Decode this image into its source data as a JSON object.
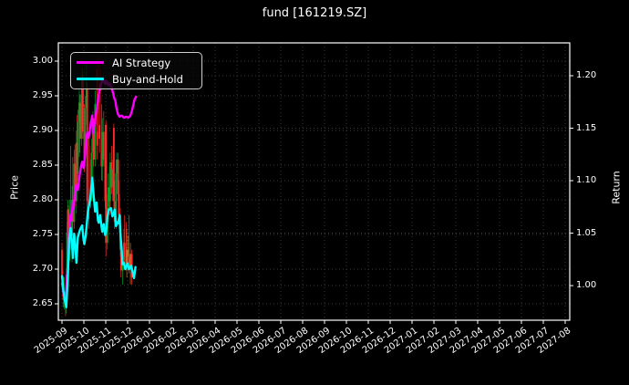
{
  "title": "fund [161219.SZ]",
  "figure": {
    "bg": "#000000",
    "text_color": "#ffffff",
    "grid_color": "#3a3a3a",
    "spine_color": "#ffffff"
  },
  "legend": {
    "items": [
      {
        "label": "AI Strategy",
        "color": "#ff00ff"
      },
      {
        "label": "Buy-and-Hold",
        "color": "#00ffff"
      }
    ]
  },
  "axes": {
    "left": {
      "label": "Price",
      "tick_labels": [
        "3.00",
        "2.95",
        "2.90",
        "2.85",
        "2.80",
        "2.75",
        "2.70",
        "2.65"
      ],
      "tick_values": [
        3.0,
        2.95,
        2.9,
        2.85,
        2.8,
        2.75,
        2.7,
        2.65
      ],
      "range": [
        2.6263,
        3.0263
      ]
    },
    "right": {
      "label": "Return",
      "tick_labels": [
        "1.20",
        "1.15",
        "1.10",
        "1.05",
        "1.00"
      ],
      "tick_values": [
        1.2,
        1.15,
        1.1,
        1.05,
        1.0
      ],
      "range": [
        0.967,
        1.2313
      ]
    },
    "bottom": {
      "tick_labels": [
        "2025-09",
        "2025-10",
        "2025-11",
        "2025-12",
        "2026-01",
        "2026-02",
        "2026-03",
        "2026-04",
        "2026-05",
        "2026-06",
        "2026-07",
        "2026-08",
        "2026-09",
        "2026-10",
        "2026-11",
        "2026-12",
        "2027-01",
        "2027-02",
        "2027-03",
        "2027-04",
        "2027-05",
        "2027-06",
        "2027-07",
        "2027-08"
      ]
    }
  },
  "chart_data": {
    "type": "candlestick+line",
    "title": "fund [161219.SZ]",
    "ylabel_left": "Price",
    "ylabel_right": "Return",
    "grid": true,
    "legend_position": "upper left",
    "x_unit": "days since 2025-09-01",
    "price_axis_range": [
      2.6263,
      3.0263
    ],
    "return_axis_range": [
      0.967,
      1.2313
    ],
    "x_months": [
      "2025-09",
      "2025-10",
      "2025-11",
      "2025-12",
      "2026-01",
      "2026-02",
      "2026-03",
      "2026-04",
      "2026-05",
      "2026-06",
      "2026-07",
      "2026-08",
      "2026-09",
      "2026-10",
      "2026-11",
      "2026-12",
      "2027-01",
      "2027-02",
      "2027-03",
      "2027-04",
      "2027-05",
      "2027-06",
      "2027-07",
      "2027-08"
    ],
    "candles": {
      "columns": [
        "day",
        "open",
        "high",
        "low",
        "close",
        "color"
      ],
      "palette": {
        "g": "#00a028",
        "r": "#ff2d2d",
        "dr": "#990000",
        "or": "#c07828"
      },
      "rows": [
        [
          0,
          2.728,
          2.738,
          2.682,
          2.69
        ],
        [
          1,
          2.69,
          2.7,
          2.66,
          2.668
        ],
        [
          2,
          2.668,
          2.688,
          2.645,
          2.655
        ],
        [
          3,
          2.655,
          2.688,
          2.642,
          2.668
        ],
        [
          5,
          2.668,
          2.672,
          2.632,
          2.645
        ],
        [
          6,
          2.645,
          2.7,
          2.636,
          2.692
        ],
        [
          7,
          2.692,
          2.768,
          2.688,
          2.752
        ],
        [
          8,
          2.752,
          2.8,
          2.72,
          2.786
        ],
        [
          9,
          2.786,
          2.792,
          2.716,
          2.728
        ],
        [
          11,
          2.728,
          2.8,
          2.712,
          2.762
        ],
        [
          12,
          2.762,
          2.878,
          2.74,
          2.748
        ],
        [
          14,
          2.748,
          2.82,
          2.71,
          2.8
        ],
        [
          15,
          2.8,
          2.862,
          2.748,
          2.768
        ],
        [
          17,
          2.768,
          2.872,
          2.758,
          2.852
        ],
        [
          18,
          2.852,
          2.88,
          2.79,
          2.798
        ],
        [
          20,
          2.798,
          2.9,
          2.78,
          2.882
        ],
        [
          21,
          2.882,
          2.922,
          2.82,
          2.838
        ],
        [
          22,
          2.838,
          2.93,
          2.828,
          2.912
        ],
        [
          24,
          2.912,
          2.958,
          2.862,
          2.94
        ],
        [
          25,
          2.94,
          2.952,
          2.868,
          2.888
        ],
        [
          27,
          2.888,
          2.972,
          2.878,
          2.952
        ],
        [
          28,
          2.952,
          2.99,
          2.9,
          2.972
        ],
        [
          29,
          2.972,
          2.982,
          2.888,
          2.898
        ],
        [
          31,
          2.898,
          2.938,
          2.84,
          2.858
        ],
        [
          32,
          2.858,
          2.95,
          2.848,
          2.932
        ],
        [
          34,
          2.932,
          2.996,
          2.908,
          2.962
        ],
        [
          35,
          2.962,
          2.97,
          2.78,
          2.798
        ],
        [
          37,
          2.798,
          2.888,
          2.758,
          2.772
        ],
        [
          38,
          2.878,
          2.898,
          2.798,
          2.818,
          "dr"
        ],
        [
          40,
          2.818,
          2.858,
          2.788,
          2.798
        ],
        [
          41,
          2.798,
          2.888,
          2.798,
          2.868
        ],
        [
          43,
          2.868,
          2.928,
          2.828,
          2.908
        ],
        [
          44,
          2.908,
          2.918,
          2.848,
          2.858
        ],
        [
          46,
          2.858,
          2.958,
          2.848,
          2.938
        ],
        [
          48,
          2.938,
          3.002,
          2.878,
          2.898,
          "dr"
        ],
        [
          49,
          2.898,
          2.988,
          2.858,
          2.878
        ],
        [
          51,
          2.948,
          3.006,
          2.888,
          2.908,
          "dr"
        ],
        [
          52,
          2.908,
          2.968,
          2.868,
          2.888
        ],
        [
          54,
          2.888,
          2.988,
          2.848,
          2.868,
          "dr"
        ],
        [
          55,
          2.868,
          2.938,
          2.828,
          2.848
        ],
        [
          56,
          2.848,
          2.918,
          2.828,
          2.898
        ],
        [
          58,
          2.898,
          2.928,
          2.848,
          2.858
        ],
        [
          60,
          2.858,
          2.908,
          2.788,
          2.798
        ],
        [
          61,
          2.908,
          2.914,
          2.718,
          2.738
        ],
        [
          63,
          2.738,
          2.808,
          2.728,
          2.788
        ],
        [
          64,
          2.788,
          2.838,
          2.768,
          2.818
        ],
        [
          66,
          2.818,
          2.848,
          2.778,
          2.798
        ],
        [
          67,
          2.798,
          2.868,
          2.788,
          2.854
        ],
        [
          69,
          2.854,
          2.878,
          2.808,
          2.818
        ],
        [
          70,
          2.818,
          2.858,
          2.798,
          2.844
        ],
        [
          72,
          2.904,
          2.91,
          2.788,
          2.798
        ],
        [
          73,
          2.798,
          2.828,
          2.758,
          2.768
        ],
        [
          75,
          2.768,
          2.858,
          2.758,
          2.838
        ],
        [
          76,
          2.838,
          2.868,
          2.808,
          2.858
        ],
        [
          78,
          2.858,
          2.868,
          2.798,
          2.808
        ],
        [
          79,
          2.808,
          2.828,
          2.768,
          2.778
        ],
        [
          81,
          2.778,
          2.788,
          2.718,
          2.728
        ],
        [
          82,
          2.728,
          2.748,
          2.688,
          2.698
        ],
        [
          84,
          2.698,
          2.728,
          2.678,
          2.714
        ],
        [
          86,
          2.714,
          2.758,
          2.698,
          2.738
        ],
        [
          87,
          2.738,
          2.778,
          2.708,
          2.718
        ],
        [
          89,
          2.718,
          2.768,
          2.698,
          2.708
        ],
        [
          90,
          2.708,
          2.758,
          2.688,
          2.728,
          "or"
        ],
        [
          92,
          2.728,
          2.748,
          2.698,
          2.718,
          "or"
        ],
        [
          93,
          2.718,
          2.778,
          2.694,
          2.702
        ],
        [
          95,
          2.702,
          2.738,
          2.678,
          2.722,
          "or"
        ],
        [
          97,
          2.722,
          2.728,
          2.678,
          2.688
        ]
      ]
    },
    "series": [
      {
        "name": "AI Strategy",
        "axis": "return",
        "color": "#ff00ff",
        "points": [
          [
            0,
            1.002
          ],
          [
            2,
            0.993
          ],
          [
            4,
            0.987
          ],
          [
            5,
            0.984
          ],
          [
            7,
            1.008
          ],
          [
            9,
            1.03
          ],
          [
            10,
            1.052
          ],
          [
            12,
            1.068
          ],
          [
            13,
            1.062
          ],
          [
            15,
            1.079
          ],
          [
            16,
            1.073
          ],
          [
            18,
            1.088
          ],
          [
            20,
            1.096
          ],
          [
            22,
            1.091
          ],
          [
            24,
            1.103
          ],
          [
            26,
            1.112
          ],
          [
            28,
            1.118
          ],
          [
            30,
            1.112
          ],
          [
            32,
            1.124
          ],
          [
            33,
            1.138
          ],
          [
            35,
            1.146
          ],
          [
            37,
            1.141
          ],
          [
            39,
            1.149
          ],
          [
            40,
            1.155
          ],
          [
            42,
            1.162
          ],
          [
            43,
            1.145
          ],
          [
            45,
            1.154
          ],
          [
            47,
            1.163
          ],
          [
            49,
            1.172
          ],
          [
            51,
            1.182
          ],
          [
            53,
            1.189
          ],
          [
            55,
            1.194
          ],
          [
            58,
            1.196
          ],
          [
            60,
            1.192
          ],
          [
            62,
            1.195
          ],
          [
            64,
            1.191
          ],
          [
            66,
            1.193
          ],
          [
            68,
            1.19
          ],
          [
            70,
            1.186
          ],
          [
            72,
            1.18
          ],
          [
            74,
            1.176
          ],
          [
            76,
            1.168
          ],
          [
            78,
            1.163
          ],
          [
            80,
            1.161
          ],
          [
            83,
            1.162
          ],
          [
            86,
            1.16
          ],
          [
            89,
            1.161
          ],
          [
            92,
            1.16
          ],
          [
            95,
            1.162
          ],
          [
            97,
            1.166
          ],
          [
            99,
            1.172
          ],
          [
            101,
            1.178
          ],
          [
            103,
            1.18
          ]
        ]
      },
      {
        "name": "Buy-and-Hold",
        "axis": "price",
        "color": "#00ffff",
        "points": [
          [
            0,
            2.69
          ],
          [
            2,
            2.668
          ],
          [
            4,
            2.655
          ],
          [
            6,
            2.645
          ],
          [
            8,
            2.684
          ],
          [
            10,
            2.743
          ],
          [
            12,
            2.759
          ],
          [
            14,
            2.735
          ],
          [
            15,
            2.716
          ],
          [
            17,
            2.751
          ],
          [
            19,
            2.728
          ],
          [
            20,
            2.709
          ],
          [
            22,
            2.746
          ],
          [
            25,
            2.757
          ],
          [
            28,
            2.763
          ],
          [
            30,
            2.742
          ],
          [
            31,
            2.736
          ],
          [
            33,
            2.749
          ],
          [
            36,
            2.783
          ],
          [
            39,
            2.8
          ],
          [
            40,
            2.809
          ],
          [
            42,
            2.832
          ],
          [
            44,
            2.805
          ],
          [
            46,
            2.783
          ],
          [
            48,
            2.796
          ],
          [
            50,
            2.77
          ],
          [
            51,
            2.767
          ],
          [
            53,
            2.778
          ],
          [
            55,
            2.76
          ],
          [
            56,
            2.754
          ],
          [
            58,
            2.765
          ],
          [
            60,
            2.749
          ],
          [
            62,
            2.76
          ],
          [
            63,
            2.775
          ],
          [
            65,
            2.786
          ],
          [
            68,
            2.788
          ],
          [
            70,
            2.776
          ],
          [
            72,
            2.78
          ],
          [
            73,
            2.786
          ],
          [
            75,
            2.762
          ],
          [
            77,
            2.768
          ],
          [
            78,
            2.766
          ],
          [
            80,
            2.778
          ],
          [
            81,
            2.753
          ],
          [
            83,
            2.726
          ],
          [
            84,
            2.707
          ],
          [
            86,
            2.709
          ],
          [
            88,
            2.7
          ],
          [
            89,
            2.703
          ],
          [
            91,
            2.708
          ],
          [
            93,
            2.7
          ],
          [
            94,
            2.701
          ],
          [
            96,
            2.705
          ],
          [
            98,
            2.697
          ],
          [
            100,
            2.687
          ],
          [
            102,
            2.703
          ]
        ]
      }
    ]
  }
}
